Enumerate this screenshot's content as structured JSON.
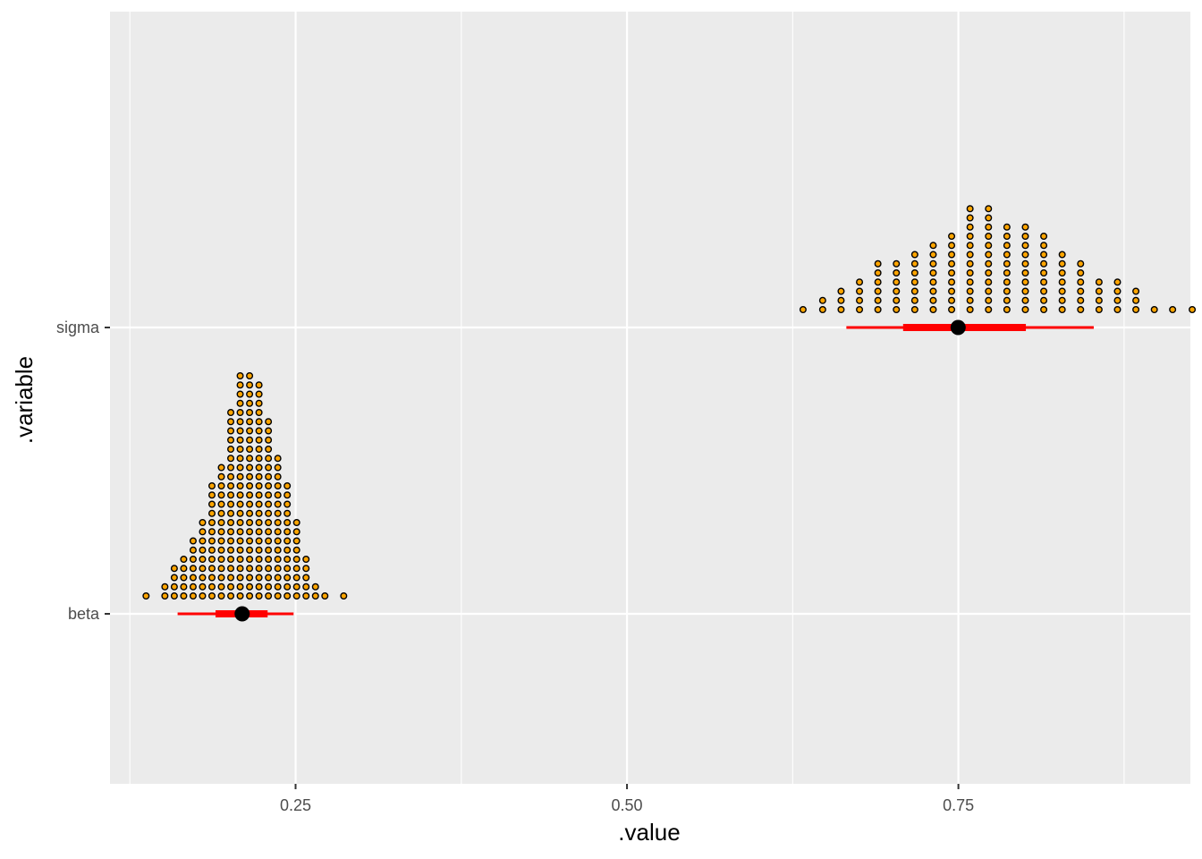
{
  "chart_data": {
    "type": "dotplot",
    "xlabel": ".value",
    "ylabel": ".variable",
    "xlim": [
      0.11,
      0.925
    ],
    "x_ticks": [
      0.25,
      0.5,
      0.75
    ],
    "x_tick_labels": [
      "0.25",
      "0.50",
      "0.75"
    ],
    "categories": [
      "beta",
      "sigma"
    ],
    "grid": true,
    "colors": {
      "panel": "#ebebeb",
      "grid": "#ffffff",
      "dot_fill": "#ffa500",
      "dot_stroke": "#000000",
      "interval": "#ff0000",
      "point": "#000000"
    },
    "series": [
      {
        "category": "beta",
        "bin_width": 0.0074,
        "bins": [
          {
            "x": 0.1372,
            "count": 1
          },
          {
            "x": 0.1514,
            "count": 2
          },
          {
            "x": 0.1585,
            "count": 4
          },
          {
            "x": 0.1656,
            "count": 5
          },
          {
            "x": 0.1727,
            "count": 7
          },
          {
            "x": 0.1798,
            "count": 9
          },
          {
            "x": 0.1869,
            "count": 13
          },
          {
            "x": 0.194,
            "count": 15
          },
          {
            "x": 0.2011,
            "count": 21
          },
          {
            "x": 0.2082,
            "count": 25
          },
          {
            "x": 0.2153,
            "count": 25
          },
          {
            "x": 0.2224,
            "count": 24
          },
          {
            "x": 0.2295,
            "count": 20
          },
          {
            "x": 0.2366,
            "count": 16
          },
          {
            "x": 0.2437,
            "count": 13
          },
          {
            "x": 0.2508,
            "count": 9
          },
          {
            "x": 0.2579,
            "count": 5
          },
          {
            "x": 0.265,
            "count": 2
          },
          {
            "x": 0.2721,
            "count": 1
          },
          {
            "x": 0.2863,
            "count": 1
          }
        ],
        "point": 0.2097,
        "interval_66": [
          0.1896,
          0.2289
        ],
        "interval_95": [
          0.161,
          0.2485
        ]
      },
      {
        "category": "sigma",
        "bin_width": 0.0139,
        "bins": [
          {
            "x": 0.6328,
            "count": 1
          },
          {
            "x": 0.6476,
            "count": 2
          },
          {
            "x": 0.6615,
            "count": 3
          },
          {
            "x": 0.6754,
            "count": 4
          },
          {
            "x": 0.6893,
            "count": 6
          },
          {
            "x": 0.7032,
            "count": 6
          },
          {
            "x": 0.7171,
            "count": 7
          },
          {
            "x": 0.731,
            "count": 8
          },
          {
            "x": 0.7449,
            "count": 9
          },
          {
            "x": 0.7588,
            "count": 12
          },
          {
            "x": 0.7727,
            "count": 12
          },
          {
            "x": 0.7866,
            "count": 10
          },
          {
            "x": 0.8005,
            "count": 10
          },
          {
            "x": 0.8144,
            "count": 9
          },
          {
            "x": 0.8283,
            "count": 7
          },
          {
            "x": 0.8422,
            "count": 6
          },
          {
            "x": 0.8561,
            "count": 4
          },
          {
            "x": 0.87,
            "count": 4
          },
          {
            "x": 0.8839,
            "count": 3
          },
          {
            "x": 0.8978,
            "count": 1
          },
          {
            "x": 0.9116,
            "count": 1
          },
          {
            "x": 0.9264,
            "count": 1
          },
          {
            "x": 0.9403,
            "count": 1
          }
        ],
        "point": 0.7498,
        "interval_66": [
          0.7083,
          0.8009
        ],
        "interval_95": [
          0.6655,
          0.8521
        ]
      }
    ]
  }
}
